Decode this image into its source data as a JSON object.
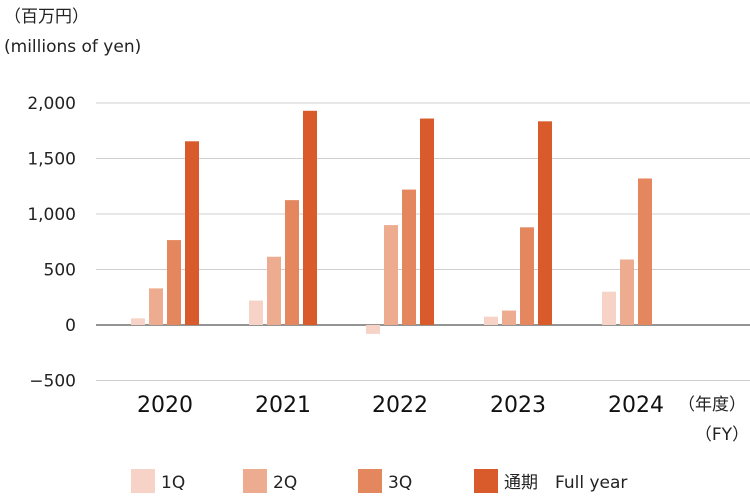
{
  "chart_data": {
    "type": "bar",
    "unit_label_jp": "（百万円）",
    "unit_label_en": "(millions of yen)",
    "x_unit_jp": "（年度）",
    "x_unit_en": "（FY）",
    "categories": [
      "2020",
      "2021",
      "2022",
      "2023",
      "2024"
    ],
    "y_ticks": [
      "2,000",
      "1,500",
      "1,000",
      "500",
      "0",
      "−500"
    ],
    "y_tick_values": [
      2000,
      1500,
      1000,
      500,
      0,
      -500
    ],
    "ylim": [
      -500,
      2000
    ],
    "grid": true,
    "legend_position": "bottom",
    "series": [
      {
        "name": "1Q",
        "color": "#f6d3c6",
        "values": [
          60,
          220,
          -80,
          75,
          300
        ]
      },
      {
        "name": "2Q",
        "color": "#edab90",
        "values": [
          330,
          615,
          900,
          130,
          590
        ]
      },
      {
        "name": "3Q",
        "color": "#e4875f",
        "values": [
          765,
          1125,
          1220,
          880,
          1320
        ]
      },
      {
        "name": "通期　Full year",
        "color": "#d95a2b",
        "values": [
          1655,
          1930,
          1860,
          1835,
          null
        ]
      }
    ]
  }
}
